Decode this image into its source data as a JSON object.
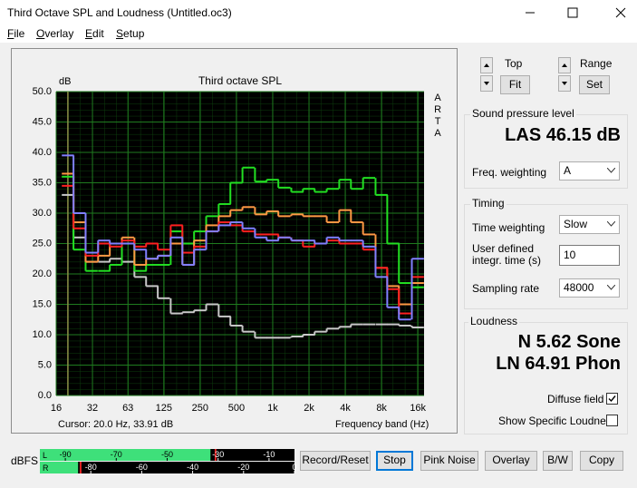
{
  "window": {
    "title": "Third Octave SPL and Loudness (Untitled.oc3)",
    "menu": [
      "File",
      "Overlay",
      "Edit",
      "Setup"
    ]
  },
  "chart_data": {
    "type": "step",
    "title": "Third octave SPL",
    "y_label": "dB",
    "x_label": "Frequency band (Hz)",
    "side_label": "ARTA",
    "cursor": "Cursor: 20.0 Hz, 33.91 dB",
    "log_x": true,
    "grid": true,
    "background": "#000000",
    "grid_color": "#1f7a1f",
    "xlim": [
      16,
      18000
    ],
    "ylim": [
      0,
      50
    ],
    "xticks": [
      16,
      32,
      63,
      125,
      250,
      500,
      {
        "value": 1000,
        "label": "1k"
      },
      {
        "value": 2000,
        "label": "2k"
      },
      {
        "value": 4000,
        "label": "4k"
      },
      {
        "value": 8000,
        "label": "8k"
      },
      {
        "value": 16000,
        "label": "16k"
      }
    ],
    "yticks": [
      {
        "value": 0,
        "label": "0.0"
      },
      {
        "value": 5,
        "label": "5.0"
      },
      {
        "value": 10,
        "label": "10.0"
      },
      {
        "value": 15,
        "label": "15.0"
      },
      {
        "value": 20,
        "label": "20.0"
      },
      {
        "value": 25,
        "label": "25.0"
      },
      {
        "value": 30,
        "label": "30.0"
      },
      {
        "value": 35,
        "label": "35.0"
      },
      {
        "value": 40,
        "label": "40.0"
      },
      {
        "value": 45,
        "label": "45.0"
      },
      {
        "value": 50,
        "label": "50.0"
      }
    ],
    "x": [
      20,
      25,
      31.5,
      40,
      50,
      63,
      80,
      100,
      125,
      160,
      200,
      250,
      315,
      400,
      500,
      630,
      800,
      1000,
      1250,
      1600,
      2000,
      2500,
      3150,
      4000,
      5000,
      6300,
      8000,
      10000,
      12500,
      16000
    ],
    "series": [
      {
        "color": "#c8c8c8",
        "values": [
          33,
          26,
          22,
          22,
          22.5,
          22,
          19.5,
          18,
          16,
          13.5,
          13.7,
          14,
          15,
          13,
          11.5,
          10.5,
          9.5,
          9.5,
          9.5,
          9.7,
          10,
          10.5,
          11,
          11.3,
          11.7,
          11.7,
          11.7,
          11.7,
          11.5,
          11.2
        ]
      },
      {
        "color": "#22e022",
        "values": [
          36,
          24,
          20.5,
          20.5,
          21.5,
          25,
          20.5,
          21.5,
          21.5,
          27,
          25,
          27,
          29.5,
          31.5,
          35,
          37.5,
          35.2,
          35.5,
          34.2,
          33.5,
          34,
          33.5,
          34,
          35.5,
          34,
          35.8,
          33,
          25,
          18.5,
          17.8
        ]
      },
      {
        "color": "#ff9944",
        "values": [
          36.5,
          28.5,
          22,
          23,
          25,
          26,
          21.5,
          22.5,
          23,
          25,
          21.5,
          25.5,
          28,
          29.5,
          30.5,
          31,
          29.8,
          30.3,
          29.5,
          29.8,
          29.5,
          29.5,
          28.5,
          30.5,
          28.5,
          26.5,
          21,
          18,
          15,
          18.5
        ]
      },
      {
        "color": "#ff2020",
        "values": [
          34.5,
          27.5,
          23,
          25,
          24.5,
          25.5,
          24.5,
          25,
          24,
          28,
          23.5,
          24.5,
          27,
          28.5,
          28,
          27,
          26.5,
          26.5,
          26,
          25.5,
          24.5,
          25,
          25.5,
          25,
          25,
          24,
          21,
          17.5,
          13.5,
          19.5
        ]
      },
      {
        "color": "#8080ff",
        "values": [
          39.5,
          30,
          23.5,
          25.5,
          25,
          25,
          24,
          22.5,
          23,
          26,
          21.5,
          24,
          27,
          28,
          28.5,
          27.5,
          26,
          25.5,
          26,
          25.5,
          25.5,
          25,
          26,
          25.5,
          25.5,
          24.5,
          19.5,
          14.5,
          12.5,
          22.5
        ]
      }
    ]
  },
  "controls": {
    "top": "Top",
    "fit": "Fit",
    "range": "Range",
    "set": "Set"
  },
  "spl": {
    "title": "Sound pressure level",
    "reading": "LAS 46.15 dB",
    "freq_weighting_label": "Freq. weighting",
    "freq_weighting": "A"
  },
  "timing": {
    "title": "Timing",
    "time_weighting_label": "Time weighting",
    "time_weighting": "Slow",
    "integr_label": [
      "User defined",
      "integr. time (s)"
    ],
    "integr_time": "10",
    "sampling_rate_label": "Sampling rate",
    "sampling_rate": "48000"
  },
  "loudness": {
    "title": "Loudness",
    "n": "N 5.62 Sone",
    "ln": "LN 64.91 Phon",
    "diffuse_field": "Diffuse field",
    "diffuse_checked": true,
    "show_specific": "Show Specific Loudness",
    "show_specific_checked": false
  },
  "meter": {
    "label": "dBFS",
    "range": [
      -100,
      0
    ],
    "channels": [
      {
        "name": "L",
        "ticks": [
          -90,
          -70,
          -50,
          -30,
          -10
        ],
        "level": -33,
        "peak": -31
      },
      {
        "name": "R",
        "ticks": [
          -80,
          -60,
          -40,
          -20,
          0
        ],
        "level": -85,
        "peak": -84
      }
    ]
  },
  "buttons": [
    "Record/Reset",
    "Stop",
    "Pink Noise",
    "Overlay",
    "B/W",
    "Copy"
  ]
}
